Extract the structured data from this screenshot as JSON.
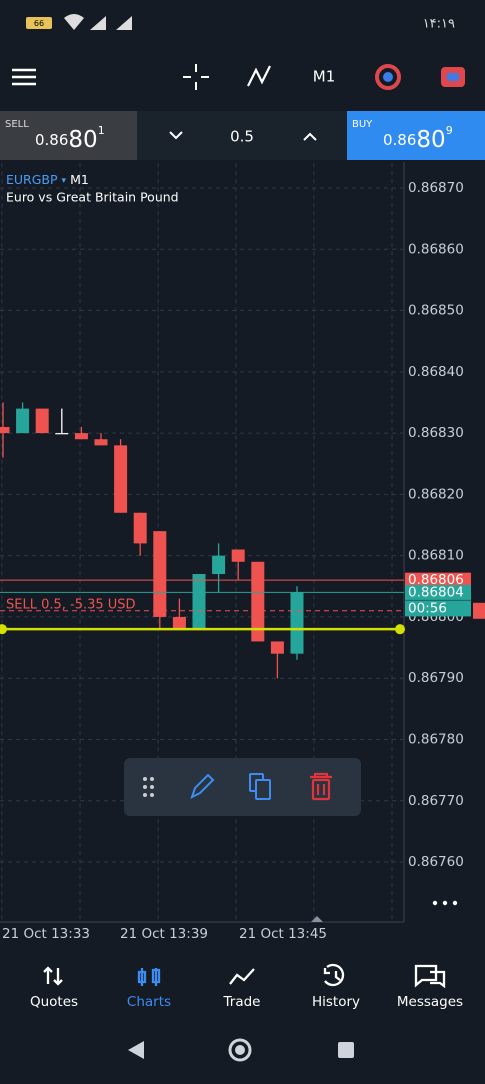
{
  "status_bar": {
    "battery": "66",
    "time": "۱۴:۱۹"
  },
  "toolbar": {
    "timeframe": "M1"
  },
  "trade_bar": {
    "sell_label": "SELL",
    "sell_price_main": "0.86",
    "sell_price_big": "80",
    "sell_price_sup": "1",
    "volume": "0.5",
    "buy_label": "BUY",
    "buy_price_main": "0.86",
    "buy_price_big": "80",
    "buy_price_sup": "9"
  },
  "chart_data": {
    "type": "candlestick",
    "symbol": "EURGBP",
    "timeframe": "M1",
    "description": "Euro vs Great Britain Pound",
    "ylim": [
      0.8675,
      0.86874
    ],
    "yticks": [
      {
        "value": 0.8687,
        "label": "0.86870"
      },
      {
        "value": 0.8686,
        "label": "0.86860"
      },
      {
        "value": 0.8685,
        "label": "0.86850"
      },
      {
        "value": 0.8684,
        "label": "0.86840"
      },
      {
        "value": 0.8683,
        "label": "0.86830"
      },
      {
        "value": 0.8682,
        "label": "0.86820"
      },
      {
        "value": 0.8681,
        "label": "0.86810"
      },
      {
        "value": 0.868,
        "label": "0.86800"
      },
      {
        "value": 0.8679,
        "label": "0.86790"
      },
      {
        "value": 0.8678,
        "label": "0.86780"
      },
      {
        "value": 0.8677,
        "label": "0.86770"
      },
      {
        "value": 0.8676,
        "label": "0.86760"
      }
    ],
    "xtick_labels": [
      "21 Oct 13:33",
      "21 Oct 13:39",
      "21 Oct 13:45"
    ],
    "up_color": "#26a69a",
    "down_color": "#ef5350",
    "grid": true,
    "open": [
      0.86831,
      0.8683,
      0.86834,
      0.8683,
      0.8683,
      0.86829,
      0.86828,
      0.86817,
      0.86814,
      0.868,
      0.86798,
      0.86807,
      0.86811,
      0.86809,
      0.86796,
      0.86794
    ],
    "high": [
      0.86835,
      0.86835,
      0.86834,
      0.86834,
      0.86831,
      0.8683,
      0.86829,
      0.86817,
      0.86814,
      0.86803,
      0.86807,
      0.86812,
      0.86811,
      0.86809,
      0.86796,
      0.86805
    ],
    "low": [
      0.86826,
      0.8683,
      0.8683,
      0.8683,
      0.86829,
      0.86828,
      0.86817,
      0.8681,
      0.86798,
      0.86798,
      0.86798,
      0.86804,
      0.86806,
      0.86796,
      0.8679,
      0.86793
    ],
    "close": [
      0.8683,
      0.86834,
      0.8683,
      0.8683,
      0.86829,
      0.86828,
      0.86817,
      0.86812,
      0.868,
      0.86798,
      0.86807,
      0.8681,
      0.86809,
      0.86796,
      0.86794,
      0.86804
    ],
    "price_lines": [
      {
        "value": 0.86806,
        "label": "0.86806",
        "color": "#ef5350"
      },
      {
        "value": 0.86804,
        "label": "0.86804",
        "color": "#26a69a"
      }
    ],
    "countdown": "00:56",
    "order_line": {
      "value": 0.86801,
      "label": "SELL 0.5,  -5.35 USD",
      "color": "#ef5350"
    },
    "stop_line": {
      "value": 0.86798,
      "color": "#d4e000"
    }
  },
  "nav": [
    "Quotes",
    "Charts",
    "Trade",
    "History",
    "Messages"
  ]
}
